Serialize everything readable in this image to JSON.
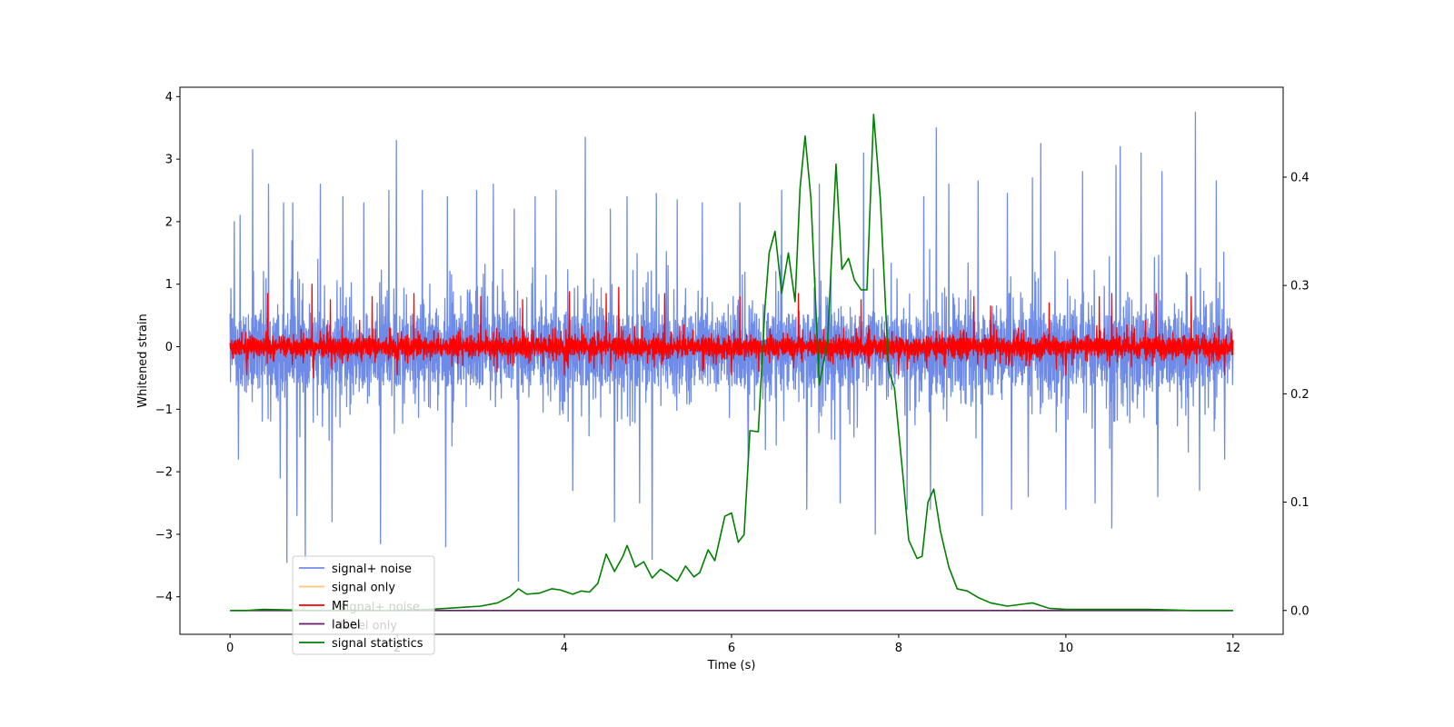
{
  "chart_data": {
    "type": "line",
    "title": "",
    "xlabel": "Time (s)",
    "ylabel": "Whitened strain",
    "y2label": "",
    "xlim": [
      -0.6,
      12.6
    ],
    "ylim": [
      -4.6,
      4.15
    ],
    "y2lim": [
      -0.022,
      0.483
    ],
    "xticks": [
      0,
      2,
      4,
      6,
      8,
      10,
      12
    ],
    "yticks": [
      -4,
      -3,
      -2,
      -1,
      0,
      1,
      2,
      3,
      4
    ],
    "y2ticks": [
      0.0,
      0.1,
      0.2,
      0.3,
      0.4
    ],
    "xtick_labels": [
      "0",
      "2",
      "4",
      "6",
      "8",
      "10",
      "12"
    ],
    "ytick_labels": [
      "−4",
      "−3",
      "−2",
      "−1",
      "0",
      "1",
      "2",
      "3",
      "4"
    ],
    "y2tick_labels": [
      "0.0",
      "0.1",
      "0.2",
      "0.3",
      "0.4"
    ],
    "legend_position": "lower-left",
    "legend": [
      {
        "label": "signal+ noise",
        "color": "#6f8be8"
      },
      {
        "label": "signal only",
        "color": "#ffc870"
      },
      {
        "label": "MF",
        "color": "#ff0000"
      },
      {
        "label": "label",
        "color": "#6a1b6a"
      },
      {
        "label": "signal statistics",
        "color": "#008000"
      }
    ],
    "ghost_legend": [
      "signal+ noise",
      "label only"
    ],
    "series": [
      {
        "name": "signal+ noise",
        "axis": "left",
        "color": "#6f8be8",
        "kind": "noise",
        "x_range": [
          0,
          12
        ],
        "band_low": -1.7,
        "band_high": 1.6,
        "spikes_up": [
          [
            0.05,
            2.0
          ],
          [
            0.12,
            2.1
          ],
          [
            0.27,
            3.15
          ],
          [
            0.46,
            2.6
          ],
          [
            0.64,
            2.3
          ],
          [
            0.75,
            2.3
          ],
          [
            1.08,
            2.6
          ],
          [
            1.35,
            2.4
          ],
          [
            1.6,
            2.3
          ],
          [
            1.9,
            2.5
          ],
          [
            1.99,
            3.3
          ],
          [
            2.3,
            2.5
          ],
          [
            2.6,
            2.4
          ],
          [
            2.95,
            2.5
          ],
          [
            3.15,
            2.6
          ],
          [
            3.4,
            2.2
          ],
          [
            3.65,
            2.4
          ],
          [
            3.9,
            2.5
          ],
          [
            4.25,
            3.35
          ],
          [
            4.55,
            2.2
          ],
          [
            4.75,
            2.4
          ],
          [
            5.1,
            2.45
          ],
          [
            5.35,
            2.35
          ],
          [
            5.65,
            2.3
          ],
          [
            6.1,
            2.3
          ],
          [
            6.6,
            2.5
          ],
          [
            7.05,
            2.6
          ],
          [
            7.58,
            3.1
          ],
          [
            8.3,
            2.4
          ],
          [
            8.45,
            3.5
          ],
          [
            8.6,
            2.6
          ],
          [
            8.95,
            2.65
          ],
          [
            9.3,
            2.45
          ],
          [
            9.6,
            2.7
          ],
          [
            9.7,
            3.25
          ],
          [
            10.2,
            2.8
          ],
          [
            10.6,
            2.9
          ],
          [
            10.65,
            3.2
          ],
          [
            10.9,
            3.1
          ],
          [
            11.15,
            2.8
          ],
          [
            11.55,
            3.75
          ],
          [
            11.8,
            2.65
          ],
          [
            11.9,
            2.8
          ]
        ],
        "spikes_down": [
          [
            0.1,
            -1.8
          ],
          [
            0.6,
            -2.1
          ],
          [
            0.8,
            -2.7
          ],
          [
            0.68,
            -3.45
          ],
          [
            0.9,
            -3.4
          ],
          [
            1.22,
            -2.8
          ],
          [
            1.8,
            -3.15
          ],
          [
            2.58,
            -3.2
          ],
          [
            3.45,
            -3.75
          ],
          [
            4.1,
            -2.3
          ],
          [
            4.6,
            -2.8
          ],
          [
            4.9,
            -2.5
          ],
          [
            5.05,
            -3.4
          ],
          [
            6.2,
            -1.9
          ],
          [
            6.9,
            -2.6
          ],
          [
            7.3,
            -2.5
          ],
          [
            7.72,
            -3.0
          ],
          [
            8.1,
            -2.6
          ],
          [
            8.38,
            -2.6
          ],
          [
            9.0,
            -2.7
          ],
          [
            9.35,
            -2.6
          ],
          [
            9.55,
            -2.4
          ],
          [
            10.0,
            -2.6
          ],
          [
            10.35,
            -2.5
          ],
          [
            10.55,
            -2.9
          ],
          [
            11.1,
            -2.4
          ],
          [
            11.6,
            -2.3
          ],
          [
            11.9,
            -1.8
          ]
        ]
      },
      {
        "name": "signal only",
        "axis": "left",
        "color": "#ffc870",
        "kind": "flat",
        "x_range": [
          0,
          12
        ],
        "value": 0
      },
      {
        "name": "MF",
        "axis": "left",
        "color": "#ff0000",
        "kind": "noise",
        "x_range": [
          0,
          12
        ],
        "band_low": -0.4,
        "band_high": 0.4,
        "spikes_up": [
          [
            0.45,
            0.85
          ],
          [
            0.98,
            1.0
          ],
          [
            1.2,
            0.75
          ],
          [
            1.7,
            0.8
          ],
          [
            2.2,
            0.85
          ],
          [
            3.0,
            0.8
          ],
          [
            3.5,
            0.75
          ],
          [
            4.06,
            0.88
          ],
          [
            4.5,
            0.85
          ],
          [
            4.65,
            0.95
          ],
          [
            5.2,
            0.85
          ],
          [
            6.1,
            0.8
          ],
          [
            6.8,
            0.85
          ],
          [
            7.55,
            0.75
          ],
          [
            8.0,
            0.85
          ],
          [
            8.9,
            0.8
          ],
          [
            9.1,
            0.65
          ],
          [
            9.8,
            0.7
          ],
          [
            10.4,
            0.8
          ],
          [
            10.55,
            0.85
          ],
          [
            11.08,
            0.85
          ],
          [
            11.5,
            0.8
          ]
        ],
        "spikes_down": [
          [
            0.2,
            -0.45
          ],
          [
            1.0,
            -0.5
          ],
          [
            2.0,
            -0.45
          ],
          [
            4.0,
            -0.45
          ],
          [
            6.0,
            -0.45
          ],
          [
            8.0,
            -0.45
          ],
          [
            10.0,
            -0.45
          ],
          [
            11.9,
            -0.45
          ]
        ]
      },
      {
        "name": "label",
        "axis": "right",
        "color": "#6a1b6a",
        "kind": "flat",
        "x_range": [
          0,
          12
        ],
        "value": 0
      },
      {
        "name": "signal statistics",
        "axis": "right",
        "color": "#008000",
        "kind": "line",
        "x": [
          0,
          0.2,
          0.4,
          1.0,
          2.0,
          2.4,
          2.8,
          3.0,
          3.2,
          3.35,
          3.45,
          3.55,
          3.7,
          3.85,
          3.95,
          4.1,
          4.2,
          4.3,
          4.4,
          4.5,
          4.6,
          4.7,
          4.75,
          4.85,
          4.95,
          5.05,
          5.15,
          5.25,
          5.35,
          5.45,
          5.55,
          5.62,
          5.72,
          5.8,
          5.92,
          6.0,
          6.08,
          6.15,
          6.22,
          6.32,
          6.4,
          6.45,
          6.52,
          6.6,
          6.68,
          6.76,
          6.82,
          6.88,
          6.95,
          7.05,
          7.15,
          7.25,
          7.32,
          7.4,
          7.47,
          7.55,
          7.62,
          7.7,
          7.78,
          7.88,
          7.95,
          8.05,
          8.12,
          8.22,
          8.28,
          8.35,
          8.42,
          8.5,
          8.6,
          8.7,
          8.82,
          8.95,
          9.1,
          9.3,
          9.5,
          9.6,
          9.8,
          10.0,
          10.5,
          11.0,
          11.5,
          12.0
        ],
        "values": [
          0.0,
          0.0,
          0.001,
          0.0,
          0.0,
          0.001,
          0.003,
          0.004,
          0.007,
          0.013,
          0.02,
          0.015,
          0.016,
          0.02,
          0.019,
          0.015,
          0.018,
          0.017,
          0.025,
          0.052,
          0.036,
          0.05,
          0.06,
          0.04,
          0.045,
          0.03,
          0.038,
          0.033,
          0.027,
          0.041,
          0.031,
          0.035,
          0.056,
          0.046,
          0.087,
          0.09,
          0.063,
          0.07,
          0.166,
          0.165,
          0.28,
          0.33,
          0.35,
          0.293,
          0.33,
          0.285,
          0.39,
          0.438,
          0.38,
          0.208,
          0.25,
          0.412,
          0.315,
          0.325,
          0.305,
          0.296,
          0.296,
          0.458,
          0.38,
          0.222,
          0.205,
          0.125,
          0.065,
          0.048,
          0.05,
          0.1,
          0.112,
          0.073,
          0.04,
          0.02,
          0.018,
          0.012,
          0.007,
          0.004,
          0.006,
          0.007,
          0.002,
          0.001,
          0.001,
          0.001,
          0.0,
          0.0
        ]
      }
    ]
  }
}
